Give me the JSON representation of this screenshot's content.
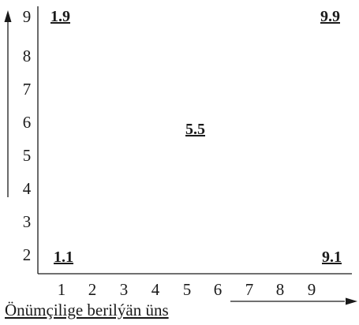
{
  "diagram": {
    "x_axis": {
      "ticks": [
        "1",
        "2",
        "3",
        "4",
        "5",
        "6",
        "7",
        "8",
        "9"
      ],
      "label": "Önümçilige berilýän üns"
    },
    "y_axis": {
      "ticks": [
        "2",
        "3",
        "4",
        "5",
        "6",
        "7",
        "8",
        "9"
      ],
      "label": ""
    },
    "points": [
      {
        "label": "1.9",
        "x": 1,
        "y": 9
      },
      {
        "label": "9.9",
        "x": 9,
        "y": 9
      },
      {
        "label": "5.5",
        "x": 5,
        "y": 5
      },
      {
        "label": "1.1",
        "x": 1,
        "y": 1
      },
      {
        "label": "9.1",
        "x": 9,
        "y": 1
      }
    ],
    "colors": {
      "ink": "#1a1a1a",
      "background": "#ffffff"
    }
  }
}
